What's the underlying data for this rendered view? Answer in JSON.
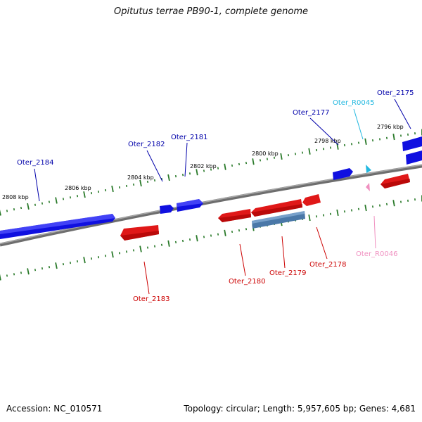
{
  "title": "Opitutus terrae PB90-1, complete genome",
  "footer": {
    "accession": "Accession: NC_010571",
    "summary": "Topology: circular; Length: 5,957,605 bp; Genes: 4,681"
  },
  "colors": {
    "forward_gene": "#1010e0",
    "reverse_gene": "#e01818",
    "rna_forward": "#22b8e0",
    "rna_reverse": "#f090c0",
    "pseudo_gene": "#4a78a8",
    "backbone": "#808080",
    "ticks": "#2a7a2a",
    "label_forward": "#0000aa",
    "label_reverse": "#cc0000"
  },
  "scale_labels": [
    "2808 kbp",
    "2806 kbp",
    "2804 kbp",
    "2802 kbp",
    "2800 kbp",
    "2798 kbp",
    "2796 kbp"
  ],
  "genes": [
    {
      "name": "Oter_2184",
      "strand": "forward"
    },
    {
      "name": "Oter_2182",
      "strand": "forward"
    },
    {
      "name": "Oter_2181",
      "strand": "forward"
    },
    {
      "name": "Oter_2177",
      "strand": "forward"
    },
    {
      "name": "Oter_R0045",
      "strand": "forward"
    },
    {
      "name": "Oter_2175",
      "strand": "forward"
    },
    {
      "name": "Oter_2183",
      "strand": "reverse"
    },
    {
      "name": "Oter_2180",
      "strand": "reverse"
    },
    {
      "name": "Oter_2179",
      "strand": "reverse"
    },
    {
      "name": "Oter_2178",
      "strand": "reverse"
    },
    {
      "name": "Oter_R0046",
      "strand": "reverse"
    }
  ]
}
